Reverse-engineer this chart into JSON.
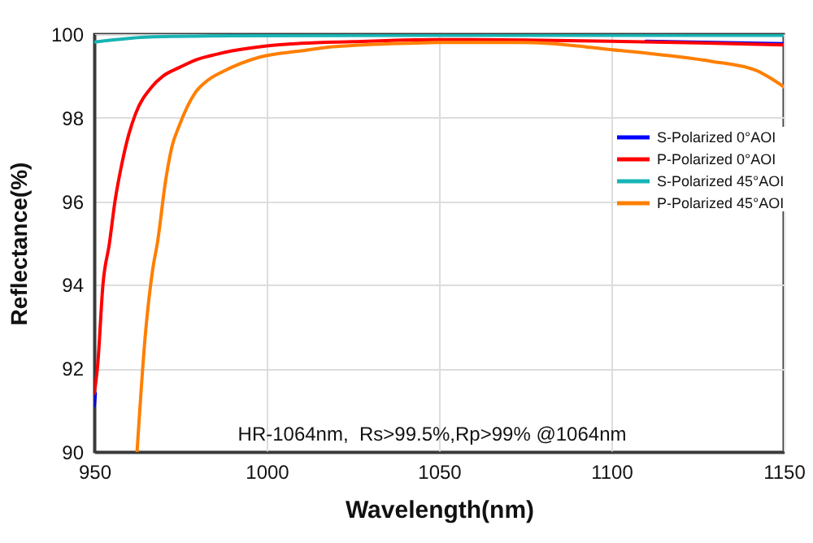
{
  "chart_data": {
    "type": "line",
    "xlabel": "Wavelength(nm)",
    "ylabel": "Reflectance(%)",
    "xlim": [
      950,
      1150
    ],
    "ylim": [
      90,
      100
    ],
    "xticks": [
      950,
      1000,
      1050,
      1100,
      1150
    ],
    "yticks": [
      90,
      92,
      94,
      96,
      98,
      100
    ],
    "grid": true,
    "legend": "right",
    "annotations": [
      "HR-1064nm,  Rs>99.5%,Rp>99% @1064nm"
    ],
    "series": [
      {
        "name": "S-Polarized 0°AOI",
        "color": "#0000ff",
        "x": [
          950,
          950.3,
          1000,
          1110,
          1130,
          1150
        ],
        "values": [
          91.1,
          91.4,
          null,
          99.83,
          99.8,
          99.77
        ]
      },
      {
        "name": "P-Polarized 0°AOI",
        "color": "#ff0000",
        "x": [
          950,
          951,
          952.5,
          954.4,
          956,
          958,
          960,
          962,
          966.7,
          970,
          974.6,
          980,
          985.6,
          990,
          1000,
          1010,
          1025,
          1050,
          1075,
          1100,
          1125,
          1150
        ],
        "values": [
          91.4,
          92.1,
          94.0,
          95.0,
          96.0,
          96.9,
          97.6,
          98.1,
          98.74,
          99.0,
          99.2,
          99.4,
          99.52,
          99.6,
          99.72,
          99.78,
          99.82,
          99.87,
          99.86,
          99.83,
          99.79,
          99.74
        ]
      },
      {
        "name": "S-Polarized 45°AOI",
        "color": "#17b4b4",
        "x": [
          950,
          955,
          960,
          970,
          990,
          1050,
          1150
        ],
        "values": [
          99.81,
          99.86,
          99.9,
          99.94,
          99.96,
          99.97,
          99.97
        ]
      },
      {
        "name": "P-Polarized 45°AOI",
        "color": "#ff7f00",
        "x": [
          962.4,
          964.8,
          967,
          968.3,
          970.7,
          972.5,
          974.6,
          979.3,
          983,
          987.2,
          998,
          1010,
          1017,
          1030,
          1040.8,
          1050,
          1074,
          1090,
          1097.5,
          1113,
          1129,
          1142,
          1150
        ],
        "values": [
          90,
          92.8,
          94.4,
          95.0,
          96.5,
          97.3,
          97.8,
          98.6,
          98.9,
          99.1,
          99.45,
          99.6,
          99.68,
          99.75,
          99.78,
          99.8,
          99.8,
          99.72,
          99.65,
          99.52,
          99.35,
          99.13,
          98.74
        ]
      }
    ]
  }
}
